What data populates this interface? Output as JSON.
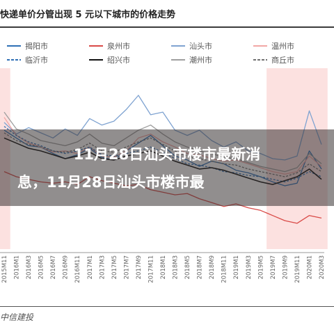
{
  "title": "快递单价分管出现 5 元以下城市的价格走势",
  "overlay": {
    "line1": "11月28日汕头市楼市最新消",
    "line2": "息，11月28日汕头市楼市最"
  },
  "source": "中信建投",
  "chart_data": {
    "type": "line",
    "title": "快递单价分管出现 5 元以下城市的价格走势",
    "xlabel": "",
    "ylabel": "",
    "categories": [
      "2015M11",
      "2016M1",
      "2016M3",
      "2016M5",
      "2016M7",
      "2016M9",
      "2016M11",
      "2017M1",
      "2017M3",
      "2017M5",
      "2017M7",
      "2017M9",
      "2017M11",
      "2018M1",
      "2018M3",
      "2018M5",
      "2018M7",
      "2018M9",
      "2018M11",
      "2019M1",
      "2019M3",
      "2019M5",
      "2019M7",
      "2019M9",
      "2019M11",
      "2020M1",
      "2020M3"
    ],
    "ylim": [
      0,
      14
    ],
    "grid": false,
    "legend_position": "top",
    "shaded_periods": [
      {
        "from": "2015M11",
        "to": "2015M11"
      },
      {
        "from": "2019M7",
        "to": "2020M3"
      }
    ],
    "series": [
      {
        "name": "揭阳市",
        "color": "#2e6fb5",
        "style": "solid",
        "values": [
          9.2,
          8.6,
          8.0,
          7.9,
          7.4,
          7.0,
          7.3,
          7.8,
          7.1,
          6.9,
          7.6,
          8.2,
          8.8,
          8.0,
          7.2,
          6.9,
          6.4,
          6.8,
          6.6,
          6.1,
          5.9,
          5.6,
          5.2,
          4.9,
          5.1,
          7.6,
          6.2
        ]
      },
      {
        "name": "泉州市",
        "color": "#d94a47",
        "style": "solid",
        "values": [
          6.0,
          5.6,
          5.4,
          5.2,
          5.1,
          5.2,
          5.0,
          5.6,
          5.3,
          5.1,
          4.9,
          5.0,
          4.6,
          4.4,
          4.2,
          4.3,
          3.9,
          3.6,
          3.3,
          3.5,
          3.2,
          3.0,
          2.6,
          2.2,
          2.0,
          2.6,
          2.4
        ]
      },
      {
        "name": "汕头市",
        "color": "#7fa3d1",
        "style": "solid",
        "values": [
          9.8,
          8.9,
          9.4,
          9.0,
          8.6,
          9.3,
          8.8,
          10.1,
          9.6,
          9.9,
          10.8,
          11.9,
          10.4,
          10.6,
          9.2,
          8.8,
          9.2,
          8.4,
          7.9,
          8.3,
          7.6,
          7.4,
          7.0,
          6.9,
          7.2,
          10.7,
          8.1
        ]
      },
      {
        "name": "温州市",
        "color": "#f2a7a5",
        "style": "solid",
        "values": [
          10.2,
          8.8,
          8.2,
          7.9,
          7.5,
          7.6,
          7.4,
          7.9,
          7.2,
          7.1,
          7.6,
          8.6,
          8.9,
          8.3,
          7.9,
          7.4,
          7.3,
          7.0,
          6.8,
          6.9,
          6.6,
          6.3,
          6.0,
          5.8,
          6.0,
          7.2,
          6.4
        ]
      },
      {
        "name": "临沂市",
        "color": "#2e6fb5",
        "style": "dashed",
        "values": [
          9.5,
          8.8,
          8.3,
          8.0,
          7.6,
          7.4,
          7.6,
          7.9,
          7.3,
          7.2,
          7.4,
          7.6,
          7.9,
          7.5,
          7.0,
          6.6,
          6.5,
          6.3,
          6.0,
          5.9,
          5.7,
          5.6,
          5.4,
          5.2,
          5.5,
          6.0,
          5.6
        ]
      },
      {
        "name": "绍兴市",
        "color": "#111111",
        "style": "solid",
        "values": [
          8.6,
          8.2,
          7.8,
          7.6,
          7.3,
          7.0,
          7.2,
          7.5,
          7.0,
          6.9,
          7.2,
          7.4,
          7.6,
          7.2,
          6.8,
          6.5,
          6.2,
          6.3,
          6.1,
          5.8,
          5.5,
          5.2,
          5.0,
          5.3,
          5.6,
          6.2,
          5.4
        ]
      },
      {
        "name": "潮州市",
        "color": "#9e9e9e",
        "style": "solid",
        "values": [
          10.6,
          9.3,
          8.9,
          8.4,
          8.2,
          8.0,
          8.3,
          8.9,
          8.2,
          8.0,
          8.6,
          9.2,
          9.6,
          8.9,
          8.3,
          7.9,
          7.6,
          7.4,
          7.1,
          7.0,
          6.7,
          6.4,
          6.2,
          6.0,
          6.3,
          7.4,
          6.6
        ]
      },
      {
        "name": "商丘市",
        "color": "#707070",
        "style": "dashed",
        "values": [
          9.0,
          8.4,
          8.1,
          7.9,
          7.6,
          7.5,
          7.7,
          8.2,
          7.6,
          7.5,
          7.9,
          8.3,
          8.6,
          8.1,
          7.6,
          7.2,
          7.0,
          6.8,
          6.6,
          6.5,
          6.2,
          6.0,
          5.8,
          5.6,
          5.9,
          6.6,
          6.0
        ]
      }
    ]
  }
}
